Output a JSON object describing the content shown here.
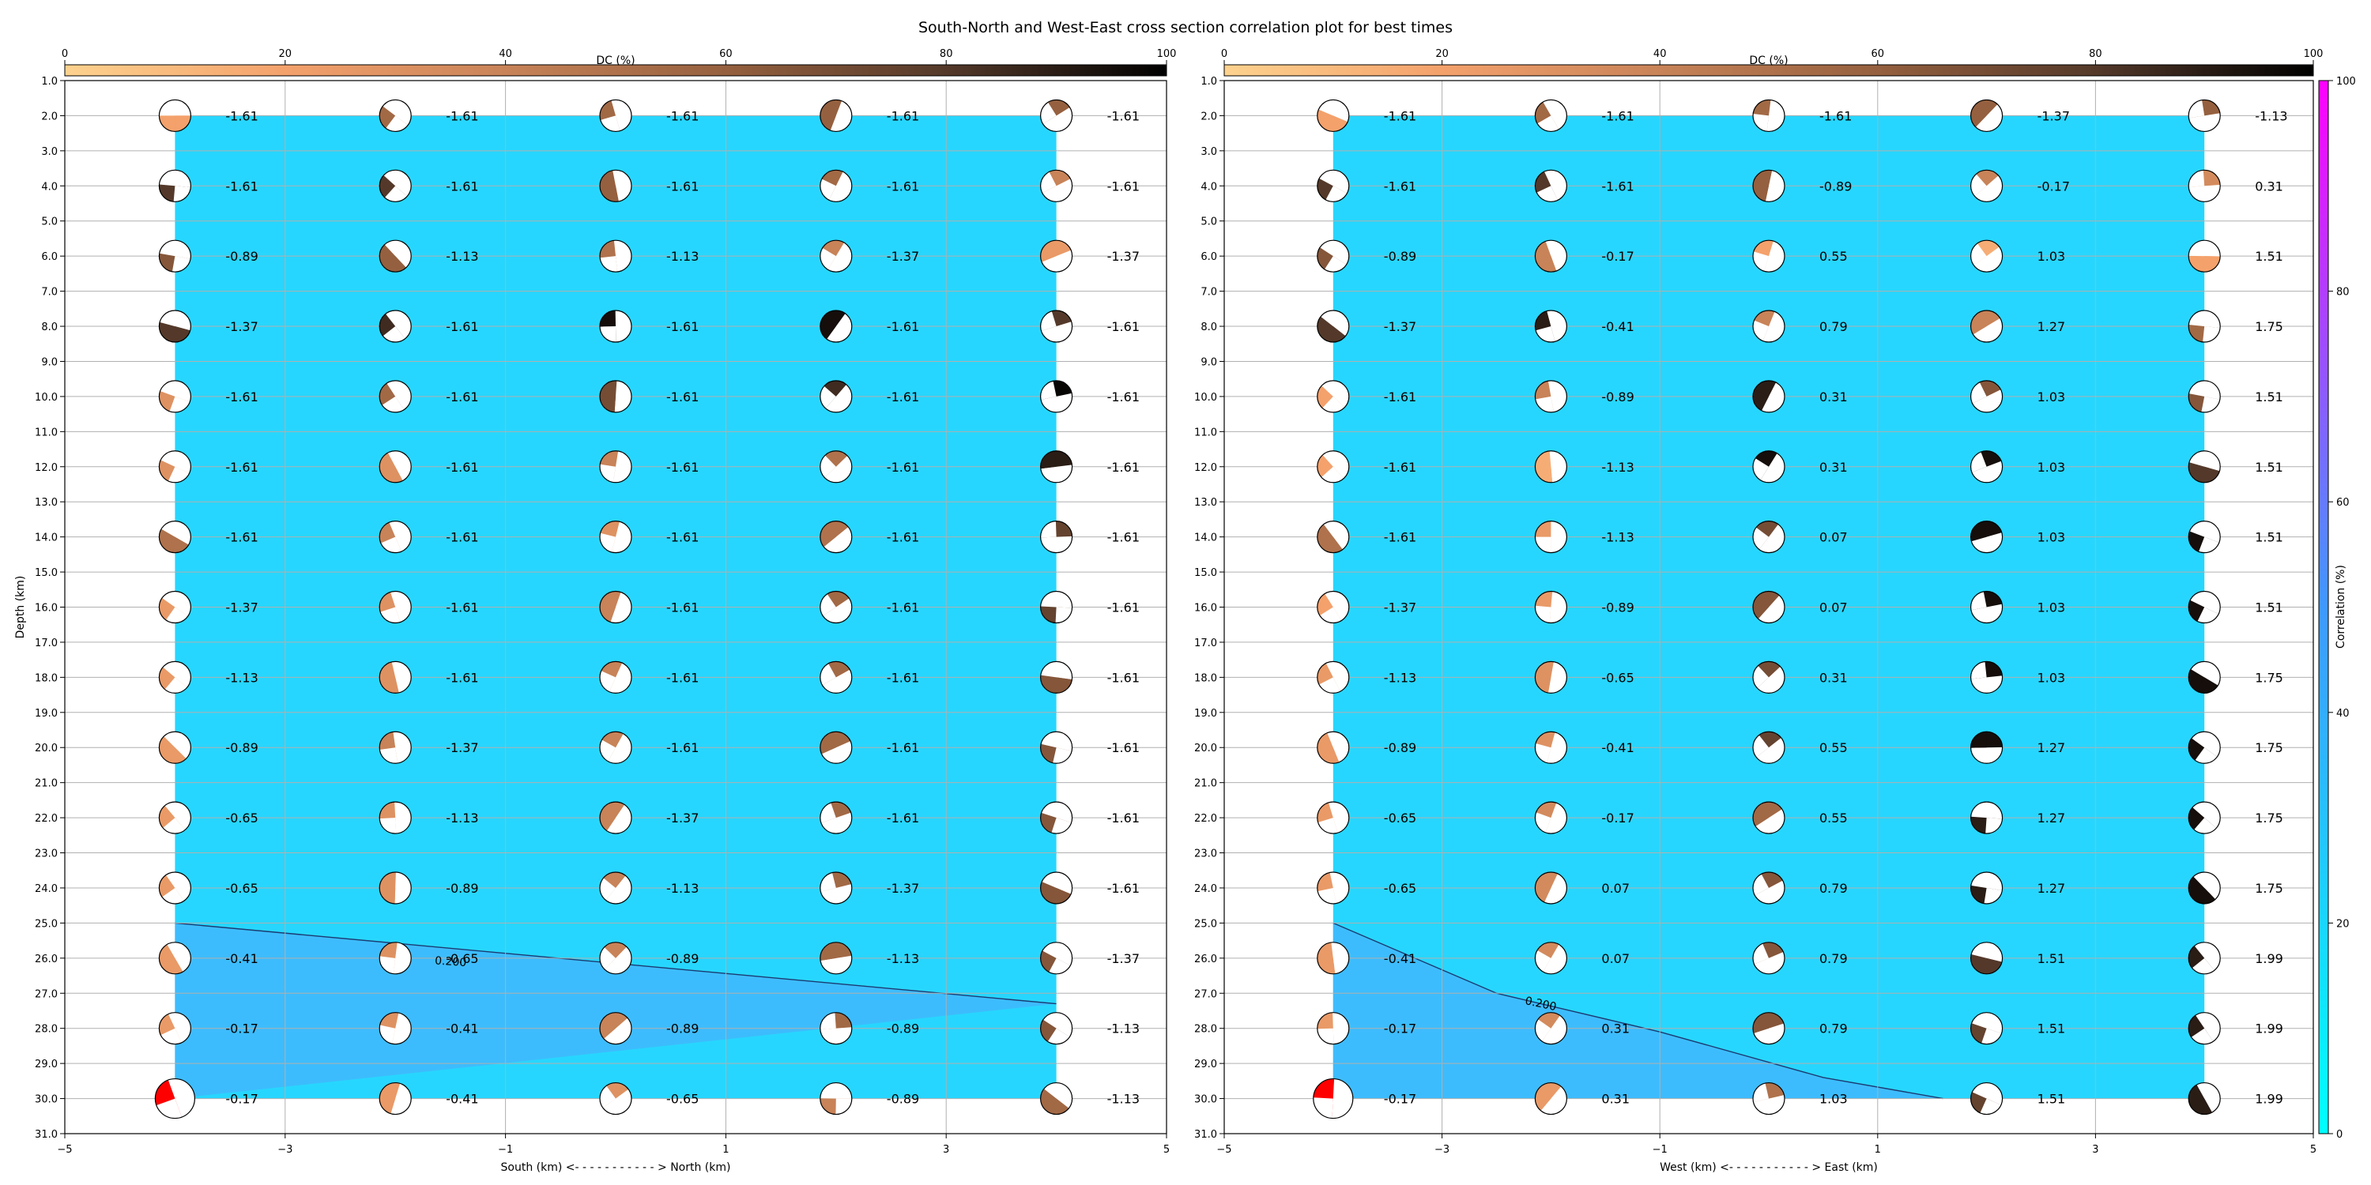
{
  "title": "South-North and West-East cross section correlation plot for best times",
  "colors": {
    "field": "#27d6fe",
    "lower_field": "#3dbcfd",
    "dc_colormap": [
      "#fdd28e",
      "#f4a16c",
      "#c88358",
      "#95603f",
      "#54392a",
      "#000000"
    ],
    "corr_colormap": [
      "#00ffff",
      "#ff00ff"
    ]
  },
  "dc_colorbar": {
    "label": "DC (%)",
    "ticks": [
      "0",
      "20",
      "40",
      "60",
      "80",
      "100"
    ]
  },
  "correlation_colorbar": {
    "label": "Correlation (%)",
    "ticks": [
      "0",
      "20",
      "40",
      "60",
      "80",
      "100"
    ]
  },
  "chart_data": [
    {
      "type": "scatter",
      "panel": "South-North",
      "xlabel": "South (km) <- - - - - - - - - - - > North (km)",
      "ylabel": "Depth (km)",
      "xlim": [
        -5,
        5
      ],
      "ylim": [
        31,
        1
      ],
      "xticks": [
        "−5",
        "−3",
        "−1",
        "1",
        "3",
        "5"
      ],
      "yticks": [
        "1.0",
        "2.0",
        "3.0",
        "4.0",
        "5.0",
        "6.0",
        "7.0",
        "8.0",
        "9.0",
        "10.0",
        "11.0",
        "12.0",
        "13.0",
        "14.0",
        "15.0",
        "16.0",
        "17.0",
        "18.0",
        "19.0",
        "20.0",
        "21.0",
        "22.0",
        "23.0",
        "24.0",
        "25.0",
        "26.0",
        "27.0",
        "28.0",
        "29.0",
        "30.0",
        "31.0"
      ],
      "x": [
        -4,
        -2,
        0,
        2,
        4
      ],
      "depths": [
        2,
        4,
        6,
        8,
        10,
        12,
        14,
        16,
        18,
        20,
        22,
        24,
        26,
        28,
        30
      ],
      "grid": true,
      "contour": {
        "label": "0.200",
        "points": [
          [
            -4,
            25.0
          ],
          [
            4,
            27.3
          ]
        ]
      },
      "values": [
        [
          "-1.61",
          "-1.61",
          "-1.61",
          "-1.61",
          "-1.61"
        ],
        [
          "-1.61",
          "-1.61",
          "-1.61",
          "-1.61",
          "-1.61"
        ],
        [
          "-0.89",
          "-1.13",
          "-1.13",
          "-1.37",
          "-1.37"
        ],
        [
          "-1.37",
          "-1.61",
          "-1.61",
          "-1.61",
          "-1.61"
        ],
        [
          "-1.61",
          "-1.61",
          "-1.61",
          "-1.61",
          "-1.61"
        ],
        [
          "-1.61",
          "-1.61",
          "-1.61",
          "-1.61",
          "-1.61"
        ],
        [
          "-1.61",
          "-1.61",
          "-1.61",
          "-1.61",
          "-1.61"
        ],
        [
          "-1.37",
          "-1.61",
          "-1.61",
          "-1.61",
          "-1.61"
        ],
        [
          "-1.13",
          "-1.61",
          "-1.61",
          "-1.61",
          "-1.61"
        ],
        [
          "-0.89",
          "-1.37",
          "-1.61",
          "-1.61",
          "-1.61"
        ],
        [
          "-0.65",
          "-1.13",
          "-1.37",
          "-1.61",
          "-1.61"
        ],
        [
          "-0.65",
          "-0.89",
          "-1.13",
          "-1.37",
          "-1.61"
        ],
        [
          "-0.41",
          "-0.65",
          "-0.89",
          "-1.13",
          "-1.37"
        ],
        [
          "-0.17",
          "-0.41",
          "-0.89",
          "-0.89",
          "-1.13"
        ],
        [
          "-0.17",
          "-0.41",
          "-0.65",
          "-0.89",
          "-1.13"
        ]
      ],
      "dc": [
        [
          20,
          55,
          55,
          60,
          60
        ],
        [
          80,
          80,
          60,
          55,
          40
        ],
        [
          65,
          60,
          50,
          40,
          25
        ],
        [
          80,
          85,
          95,
          95,
          80
        ],
        [
          30,
          55,
          70,
          85,
          98
        ],
        [
          30,
          30,
          40,
          50,
          90
        ],
        [
          50,
          40,
          30,
          50,
          75
        ],
        [
          25,
          30,
          40,
          55,
          75
        ],
        [
          25,
          30,
          40,
          55,
          65
        ],
        [
          25,
          40,
          40,
          55,
          65
        ],
        [
          25,
          30,
          40,
          55,
          65
        ],
        [
          25,
          30,
          40,
          55,
          65
        ],
        [
          25,
          30,
          40,
          55,
          65
        ],
        [
          25,
          30,
          40,
          55,
          65
        ],
        [
          0,
          25,
          30,
          40,
          55
        ]
      ]
    },
    {
      "type": "scatter",
      "panel": "West-East",
      "xlabel": "West (km) <- - - - - - - - - - - > East (km)",
      "ylabel": "",
      "xlim": [
        -5,
        5
      ],
      "ylim": [
        31,
        1
      ],
      "xticks": [
        "−5",
        "−3",
        "−1",
        "1",
        "3",
        "5"
      ],
      "x": [
        -4,
        -2,
        0,
        2,
        4
      ],
      "depths": [
        2,
        4,
        6,
        8,
        10,
        12,
        14,
        16,
        18,
        20,
        22,
        24,
        26,
        28,
        30
      ],
      "grid": true,
      "contour": {
        "label": "0.200",
        "points": [
          [
            -4,
            25.0
          ],
          [
            -2.5,
            27.0
          ],
          [
            -1,
            28.1
          ],
          [
            0.5,
            29.4
          ],
          [
            1.6,
            30.0
          ]
        ]
      },
      "values": [
        [
          "-1.61",
          "-1.61",
          "-1.61",
          "-1.37",
          "-1.13"
        ],
        [
          "-1.61",
          "-1.61",
          "-0.89",
          "-0.17",
          "0.31"
        ],
        [
          "-0.89",
          "-0.17",
          "0.55",
          "1.03",
          "1.51"
        ],
        [
          "-1.37",
          "-0.41",
          "0.79",
          "1.27",
          "1.75"
        ],
        [
          "-1.61",
          "-0.89",
          "0.31",
          "1.03",
          "1.51"
        ],
        [
          "-1.61",
          "-1.13",
          "0.31",
          "1.03",
          "1.51"
        ],
        [
          "-1.61",
          "-1.13",
          "0.07",
          "1.03",
          "1.51"
        ],
        [
          "-1.37",
          "-0.89",
          "0.07",
          "1.03",
          "1.51"
        ],
        [
          "-1.13",
          "-0.65",
          "0.31",
          "1.03",
          "1.75"
        ],
        [
          "-0.89",
          "-0.41",
          "0.55",
          "1.27",
          "1.75"
        ],
        [
          "-0.65",
          "-0.17",
          "0.55",
          "1.27",
          "1.75"
        ],
        [
          "-0.65",
          "0.07",
          "0.79",
          "1.27",
          "1.75"
        ],
        [
          "-0.41",
          "0.07",
          "0.79",
          "1.51",
          "1.99"
        ],
        [
          "-0.17",
          "0.31",
          "0.79",
          "1.51",
          "1.99"
        ],
        [
          "-0.17",
          "0.31",
          "1.03",
          "1.51",
          "1.99"
        ]
      ],
      "dc": [
        [
          20,
          55,
          55,
          60,
          60
        ],
        [
          80,
          80,
          60,
          40,
          35
        ],
        [
          65,
          40,
          20,
          15,
          20
        ],
        [
          80,
          90,
          40,
          40,
          55
        ],
        [
          20,
          40,
          90,
          65,
          65
        ],
        [
          20,
          15,
          95,
          95,
          80
        ],
        [
          50,
          25,
          70,
          95,
          95
        ],
        [
          20,
          25,
          65,
          95,
          95
        ],
        [
          25,
          30,
          70,
          95,
          95
        ],
        [
          25,
          30,
          75,
          95,
          95
        ],
        [
          25,
          35,
          55,
          90,
          95
        ],
        [
          25,
          35,
          65,
          90,
          95
        ],
        [
          25,
          35,
          65,
          80,
          90
        ],
        [
          25,
          35,
          65,
          75,
          90
        ],
        [
          0,
          25,
          50,
          75,
          90
        ]
      ]
    }
  ]
}
